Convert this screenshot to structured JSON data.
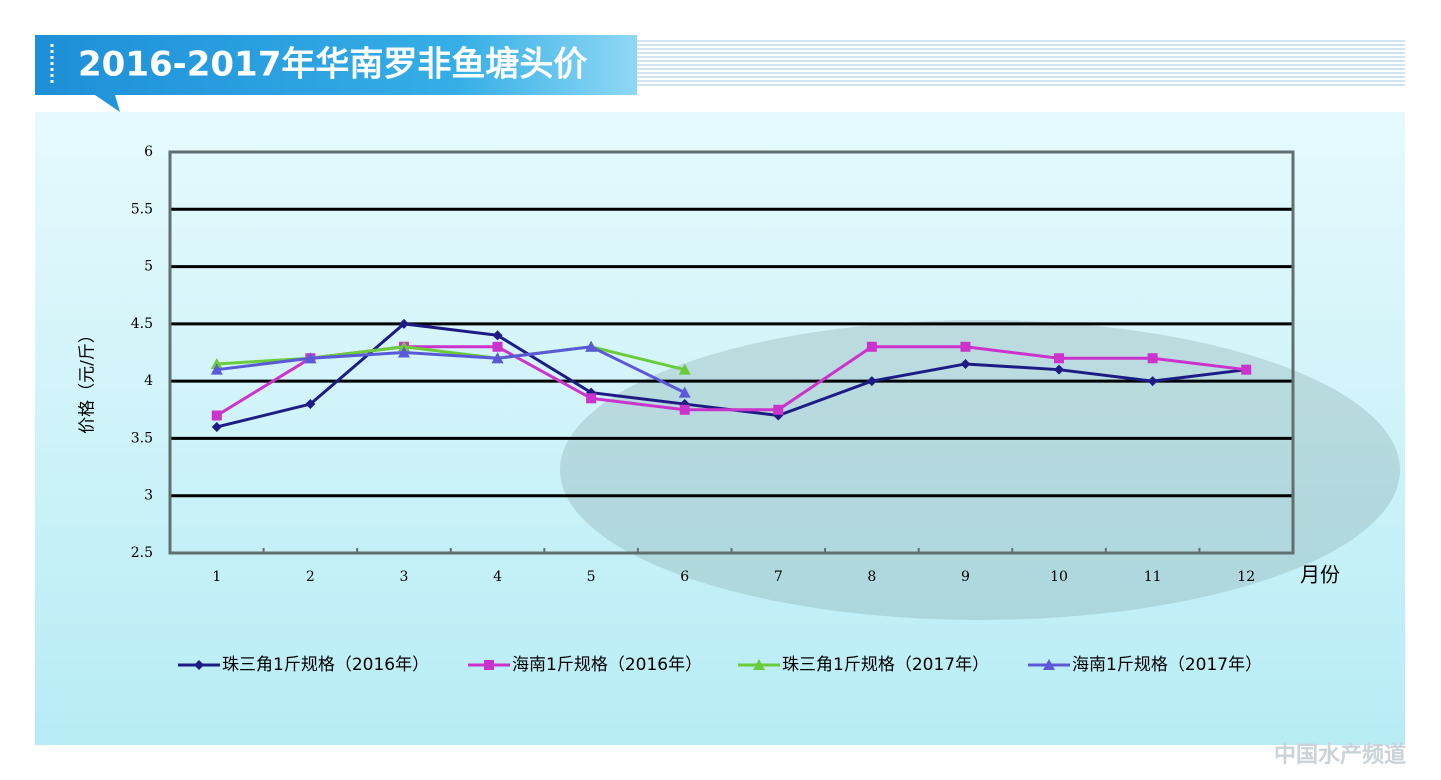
{
  "chart_data": {
    "type": "line",
    "title": "2016-2017年华南罗非鱼塘头价",
    "ylabel": "价格（元/斤）",
    "xlabel": "月份",
    "watermark": "中国水产频道",
    "categories": [
      "1",
      "2",
      "3",
      "4",
      "5",
      "6",
      "7",
      "8",
      "9",
      "10",
      "11",
      "12"
    ],
    "ylim": [
      2.5,
      6
    ],
    "yticks": [
      2.5,
      3,
      3.5,
      4,
      4.5,
      5,
      5.5,
      6
    ],
    "grid": true,
    "legend": "bottom",
    "series": [
      {
        "name": "珠三角1斤规格（2016年）",
        "color": "#1c1c84",
        "marker": "diamond",
        "values": [
          3.6,
          3.8,
          4.5,
          4.4,
          3.9,
          3.8,
          3.7,
          4.0,
          4.15,
          4.1,
          4.0,
          4.1
        ]
      },
      {
        "name": "海南1斤规格（2016年）",
        "color": "#cc33cc",
        "marker": "square",
        "values": [
          3.7,
          4.2,
          4.3,
          4.3,
          3.85,
          3.75,
          3.75,
          4.3,
          4.3,
          4.2,
          4.2,
          4.1
        ]
      },
      {
        "name": "珠三角1斤规格（2017年）",
        "color": "#6acc3a",
        "marker": "triangle",
        "values": [
          4.15,
          4.2,
          4.3,
          4.2,
          4.3,
          4.1,
          null,
          null,
          null,
          null,
          null,
          null
        ]
      },
      {
        "name": "海南1斤规格（2017年）",
        "color": "#5a5ad8",
        "marker": "triangle",
        "values": [
          4.1,
          4.2,
          4.25,
          4.2,
          4.3,
          3.9,
          null,
          null,
          null,
          null,
          null,
          null
        ]
      }
    ]
  }
}
